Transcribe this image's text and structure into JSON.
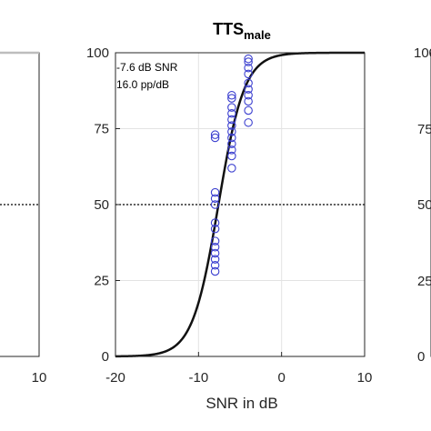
{
  "colors": {
    "fit_curve": "#111111",
    "points": "#3b3fcf",
    "grid": "#e3e3e3",
    "axis": "#262626",
    "neighbor_curve": "#bdbdbd"
  },
  "chart_data": [
    {
      "panel": "left (partially visible)",
      "type": "line",
      "title": "",
      "xlabel": "",
      "ylabel": "",
      "x_ticks_visible": [
        "10"
      ],
      "x_max": 10,
      "reference_line_y": 50,
      "reference_line_style": "dotted",
      "curve_plateau_y": 100
    },
    {
      "panel": "center",
      "type": "scatter",
      "title": "TTS",
      "title_subscript": "male",
      "xlabel": "SNR in dB",
      "ylabel": "",
      "xlim": [
        -20,
        10
      ],
      "ylim": [
        0,
        100
      ],
      "x_ticks": [
        -20,
        -10,
        0,
        10
      ],
      "x_tick_labels": [
        "-20",
        "-10",
        "0",
        "10"
      ],
      "y_ticks": [
        0,
        25,
        50,
        75,
        100
      ],
      "y_tick_labels": [
        "0",
        "25",
        "50",
        "75",
        "100"
      ],
      "grid": true,
      "annotations": [
        "-7.6 dB SNR",
        "16.0 pp/dB"
      ],
      "reference_line_y": 50,
      "reference_line_style": "dotted",
      "fit": {
        "type": "logistic",
        "threshold_db": -7.6,
        "slope_pp_per_db": 16.0
      },
      "series": [
        {
          "marker": "open-circle",
          "points": [
            [
              -8,
              28
            ],
            [
              -8,
              30
            ],
            [
              -8,
              32
            ],
            [
              -8,
              34
            ],
            [
              -8,
              36
            ],
            [
              -8,
              38
            ],
            [
              -8,
              42
            ],
            [
              -8,
              44
            ],
            [
              -8,
              50
            ],
            [
              -8,
              52
            ],
            [
              -8,
              54
            ],
            [
              -8,
              72
            ],
            [
              -8,
              73
            ],
            [
              -6,
              62
            ],
            [
              -6,
              66
            ],
            [
              -6,
              68
            ],
            [
              -6,
              70
            ],
            [
              -6,
              72
            ],
            [
              -6,
              74
            ],
            [
              -6,
              76
            ],
            [
              -6,
              78
            ],
            [
              -6,
              80
            ],
            [
              -6,
              82
            ],
            [
              -6,
              85
            ],
            [
              -6,
              86
            ],
            [
              -4,
              77
            ],
            [
              -4,
              81
            ],
            [
              -4,
              84
            ],
            [
              -4,
              86
            ],
            [
              -4,
              88
            ],
            [
              -4,
              90
            ],
            [
              -4,
              93
            ],
            [
              -4,
              95
            ],
            [
              -4,
              97
            ],
            [
              -4,
              98
            ]
          ]
        }
      ]
    },
    {
      "panel": "right (partially visible)",
      "type": "line",
      "title": "",
      "xlabel": "",
      "ylabel": "",
      "y_tick_labels_visible": [
        "100",
        "75",
        "50",
        "25",
        "0"
      ]
    }
  ]
}
